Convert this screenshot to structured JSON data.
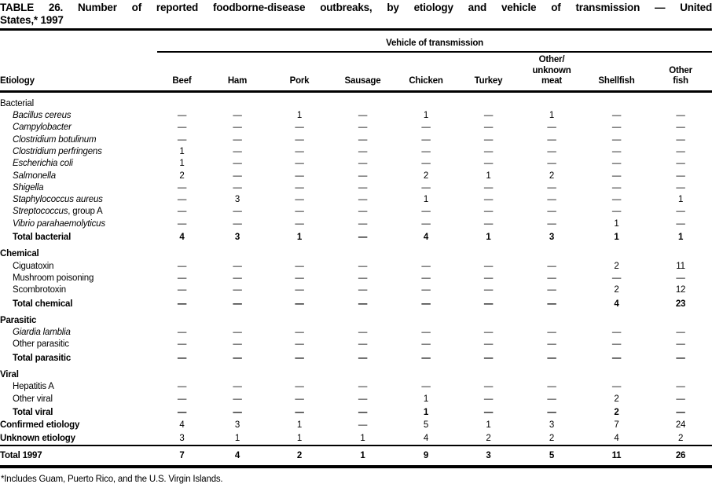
{
  "title_line1": "TABLE 26. Number of reported foodborne-disease outbreaks, by etiology and vehicle of transmission — United",
  "title_line2": "States,* 1997",
  "footnote": "*Includes Guam, Puerto Rico, and the U.S. Virgin Islands.",
  "table": {
    "group_header": "Vehicle of transmission",
    "etiology_header": "Etiology",
    "columns": [
      "Beef",
      "Ham",
      "Pork",
      "Sausage",
      "Chicken",
      "Turkey",
      "Other/\nunknown\nmeat",
      "Shellfish",
      "Other\nfish"
    ],
    "missing_symbol": "—",
    "rows": [
      {
        "type": "first-section",
        "label": "Bacterial",
        "values": []
      },
      {
        "type": "item-italic",
        "label": "Bacillus cereus",
        "values": [
          "—",
          "—",
          "1",
          "—",
          "1",
          "—",
          "1",
          "—",
          "—"
        ]
      },
      {
        "type": "item-italic",
        "label": "Campylobacter",
        "values": [
          "—",
          "—",
          "—",
          "—",
          "—",
          "—",
          "—",
          "—",
          "—"
        ]
      },
      {
        "type": "item-italic",
        "label": "Clostridium botulinum",
        "values": [
          "—",
          "—",
          "—",
          "—",
          "—",
          "—",
          "—",
          "—",
          "—"
        ]
      },
      {
        "type": "item-italic",
        "label": "Clostridium perfringens",
        "values": [
          "1",
          "—",
          "—",
          "—",
          "—",
          "—",
          "—",
          "—",
          "—"
        ]
      },
      {
        "type": "item-italic",
        "label": "Escherichia coli",
        "values": [
          "1",
          "—",
          "—",
          "—",
          "—",
          "—",
          "—",
          "—",
          "—"
        ]
      },
      {
        "type": "item-italic",
        "label": "Salmonella",
        "values": [
          "2",
          "—",
          "—",
          "—",
          "2",
          "1",
          "2",
          "—",
          "—"
        ]
      },
      {
        "type": "item-italic",
        "label": "Shigella",
        "values": [
          "—",
          "—",
          "—",
          "—",
          "—",
          "—",
          "—",
          "—",
          "—"
        ]
      },
      {
        "type": "item-italic",
        "label": "Staphylococcus aureus",
        "values": [
          "—",
          "3",
          "—",
          "—",
          "1",
          "—",
          "—",
          "—",
          "1"
        ]
      },
      {
        "type": "item-italic",
        "label": "Streptococcus",
        "suffix": ", group A",
        "values": [
          "—",
          "—",
          "—",
          "—",
          "—",
          "—",
          "—",
          "—",
          "—"
        ]
      },
      {
        "type": "item-italic",
        "label": "Vibrio parahaemolyticus",
        "values": [
          "—",
          "—",
          "—",
          "—",
          "—",
          "—",
          "—",
          "1",
          "—"
        ]
      },
      {
        "type": "total",
        "label": "Total bacterial",
        "values": [
          "4",
          "3",
          "1",
          "—",
          "4",
          "1",
          "3",
          "1",
          "1"
        ]
      },
      {
        "type": "section",
        "label": "Chemical",
        "values": []
      },
      {
        "type": "item",
        "label": "Ciguatoxin",
        "values": [
          "—",
          "—",
          "—",
          "—",
          "—",
          "—",
          "—",
          "2",
          "11"
        ]
      },
      {
        "type": "item",
        "label": "Mushroom poisoning",
        "values": [
          "—",
          "—",
          "—",
          "—",
          "—",
          "—",
          "—",
          "—",
          "—"
        ]
      },
      {
        "type": "item",
        "label": "Scombrotoxin",
        "values": [
          "—",
          "—",
          "—",
          "—",
          "—",
          "—",
          "—",
          "2",
          "12"
        ]
      },
      {
        "type": "total",
        "label": "Total chemical",
        "values": [
          "—",
          "—",
          "—",
          "—",
          "—",
          "—",
          "—",
          "4",
          "23"
        ]
      },
      {
        "type": "section",
        "label": "Parasitic",
        "values": []
      },
      {
        "type": "item-italic",
        "label": "Giardia lamblia",
        "values": [
          "—",
          "—",
          "—",
          "—",
          "—",
          "—",
          "—",
          "—",
          "—"
        ]
      },
      {
        "type": "item",
        "label": "Other parasitic",
        "values": [
          "—",
          "—",
          "—",
          "—",
          "—",
          "—",
          "—",
          "—",
          "—"
        ]
      },
      {
        "type": "total",
        "label": "Total parasitic",
        "values": [
          "—",
          "—",
          "—",
          "—",
          "—",
          "—",
          "—",
          "—",
          "—"
        ]
      },
      {
        "type": "section",
        "label": "Viral",
        "values": []
      },
      {
        "type": "item",
        "label": "Hepatitis A",
        "values": [
          "—",
          "—",
          "—",
          "—",
          "—",
          "—",
          "—",
          "—",
          "—"
        ]
      },
      {
        "type": "item",
        "label": "Other viral",
        "values": [
          "—",
          "—",
          "—",
          "—",
          "1",
          "—",
          "—",
          "2",
          "—"
        ]
      },
      {
        "type": "total",
        "label": "Total viral",
        "values": [
          "—",
          "—",
          "—",
          "—",
          "1",
          "—",
          "—",
          "2",
          "—"
        ]
      },
      {
        "type": "summary",
        "label": "Confirmed etiology",
        "values": [
          "4",
          "3",
          "1",
          "—",
          "5",
          "1",
          "3",
          "7",
          "24"
        ]
      },
      {
        "type": "summary",
        "label": "Unknown etiology",
        "values": [
          "3",
          "1",
          "1",
          "1",
          "4",
          "2",
          "2",
          "4",
          "2"
        ]
      },
      {
        "type": "grand",
        "label": "Total 1997",
        "values": [
          "7",
          "4",
          "2",
          "1",
          "9",
          "3",
          "5",
          "11",
          "26"
        ]
      }
    ]
  }
}
